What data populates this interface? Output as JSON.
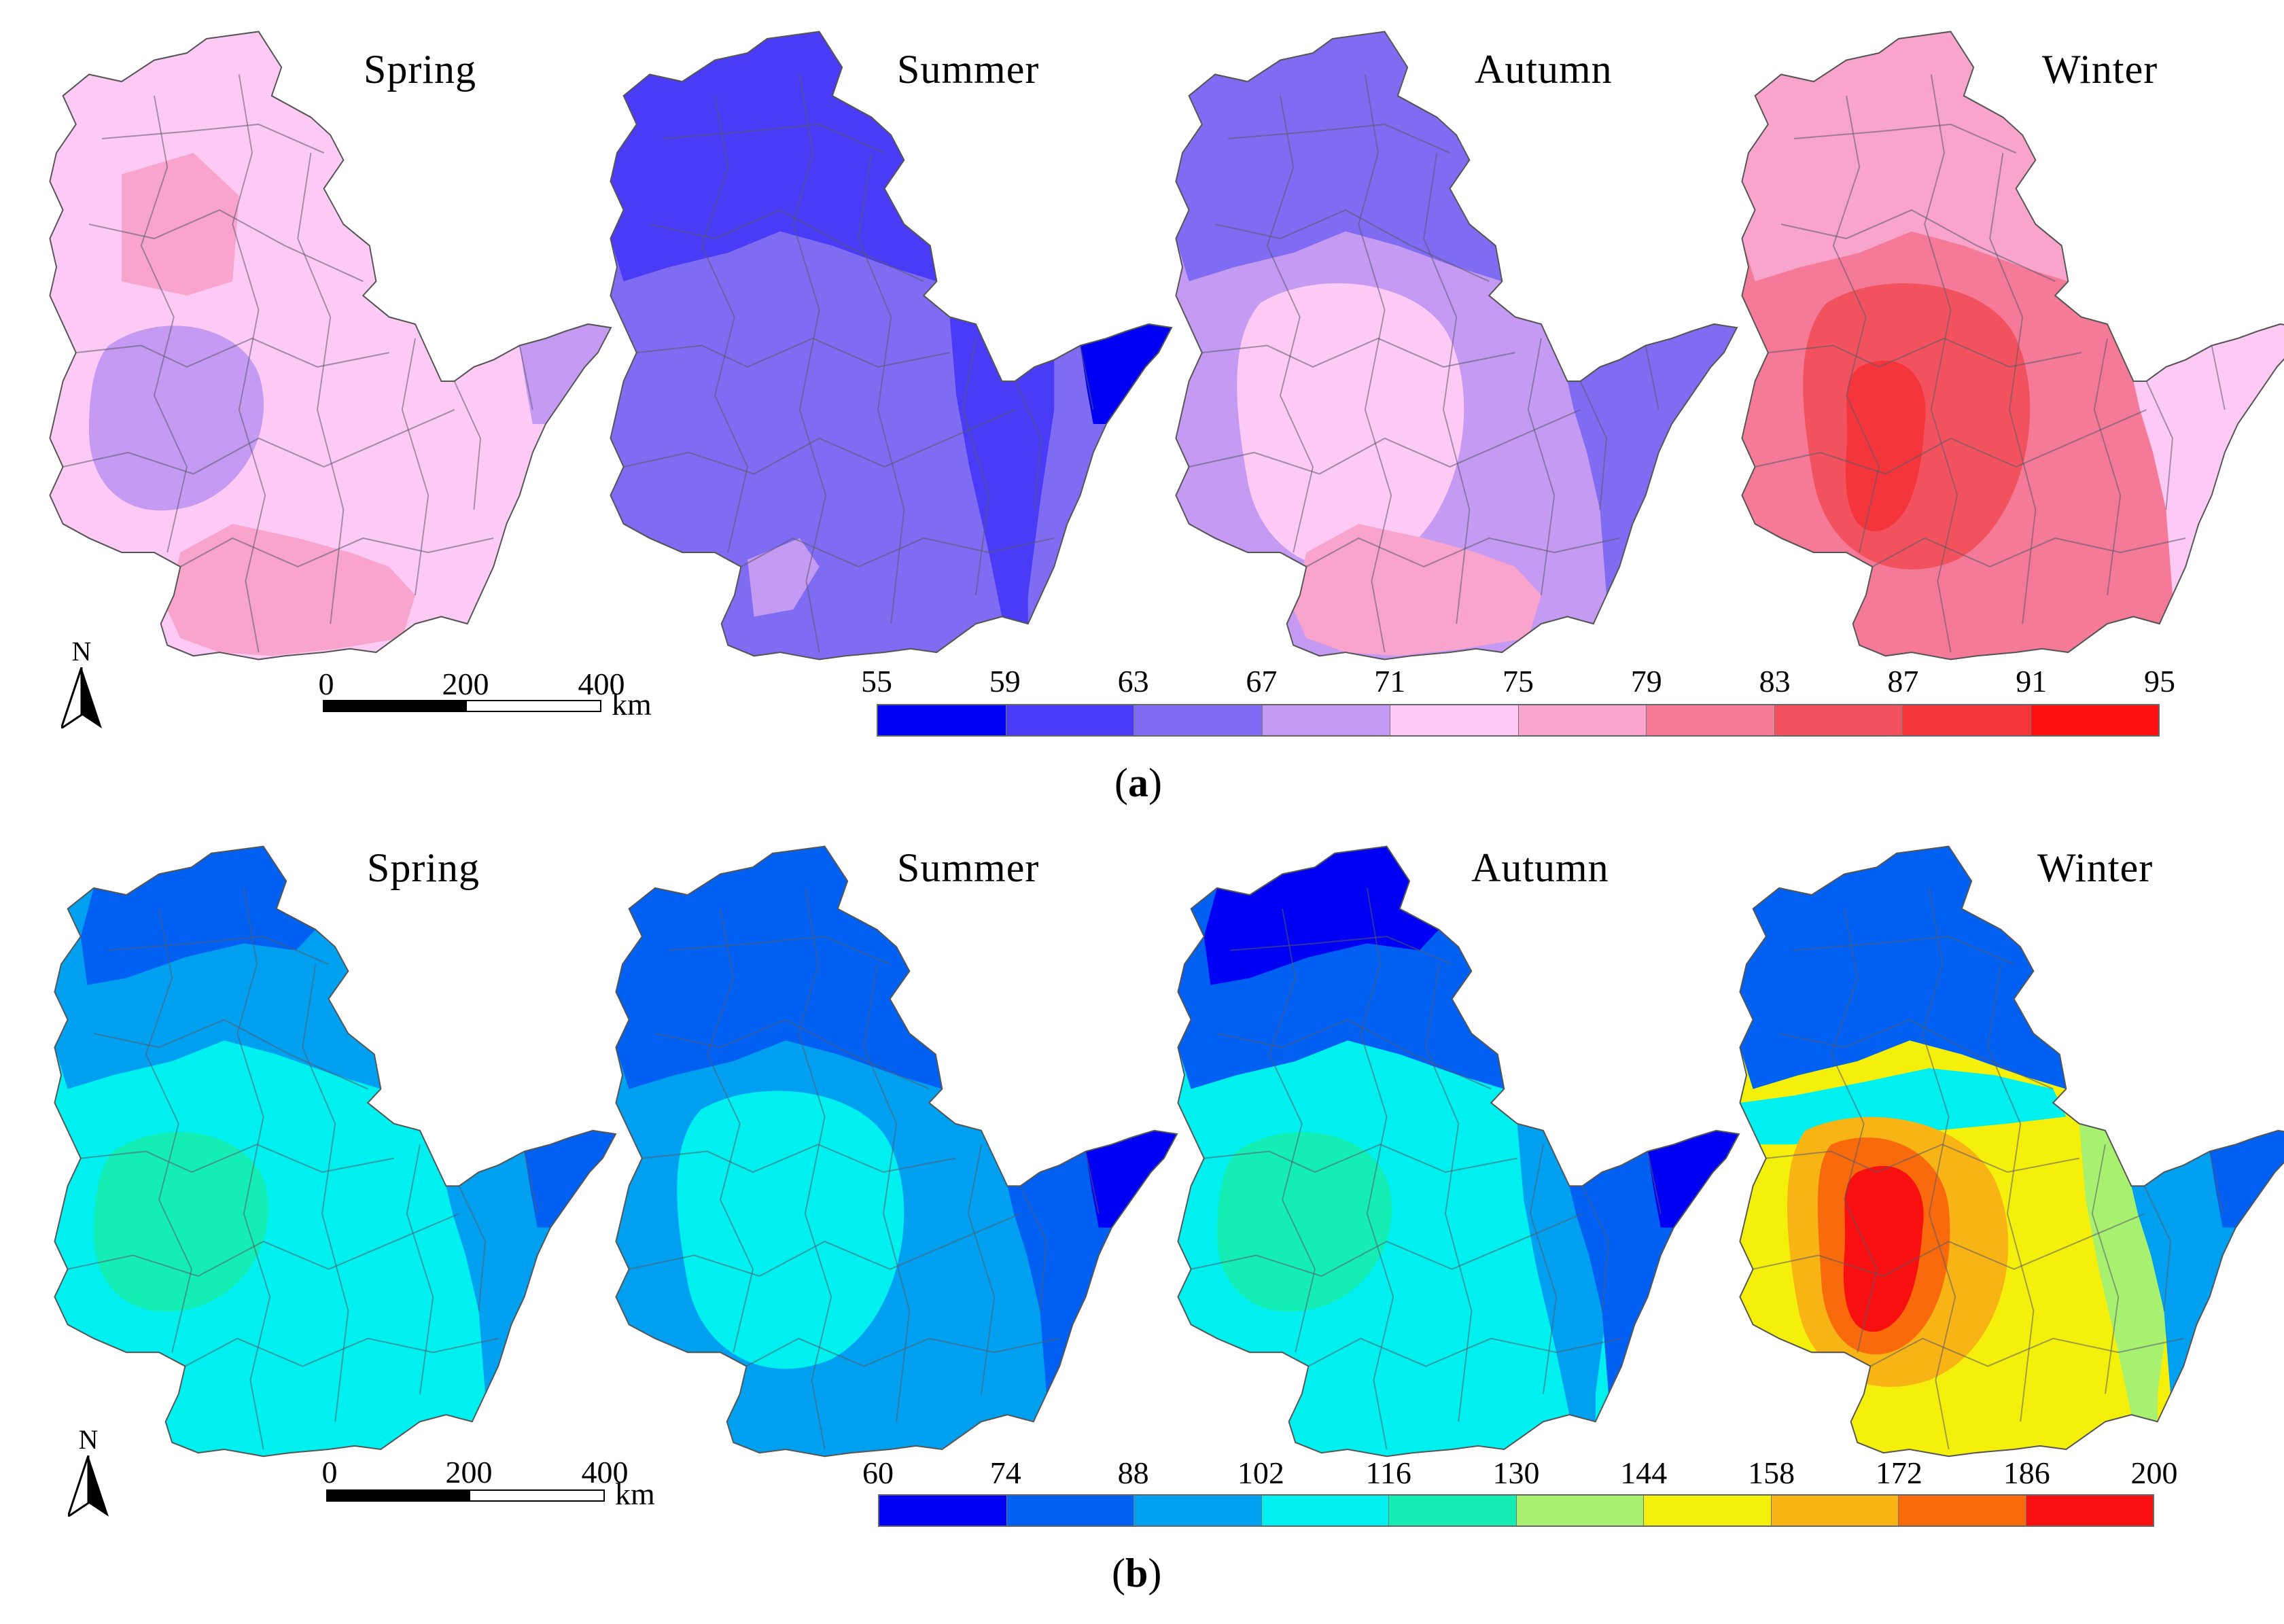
{
  "panels": [
    {
      "id": "a",
      "caption_open": "(",
      "caption_letter": "a",
      "caption_close": ")",
      "seasons": [
        "Spring",
        "Summer",
        "Autumn",
        "Winter"
      ],
      "legend": {
        "ticks": [
          "55",
          "59",
          "63",
          "67",
          "71",
          "75",
          "79",
          "83",
          "87",
          "91",
          "95"
        ],
        "colors": [
          "#0000f2",
          "#4a3cf6",
          "#7f6cf2",
          "#c59af2",
          "#fccaf4",
          "#f8a4cc",
          "#f47a98",
          "#f2525e",
          "#f4363c",
          "#fe0f10"
        ]
      },
      "maps": [
        {
          "season": "Spring",
          "base": "#fccaf4",
          "regions": [
            {
              "pattern": "top",
              "color": "#f8a4cc"
            },
            {
              "pattern": "south",
              "color": "#f8a4cc"
            },
            {
              "pattern": "blob-west",
              "color": "#c59af2"
            },
            {
              "pattern": "peninsula-tip",
              "color": "#c59af2"
            }
          ]
        },
        {
          "season": "Summer",
          "base": "#7f6cf2",
          "regions": [
            {
              "pattern": "north",
              "color": "#4a3cf6"
            },
            {
              "pattern": "east",
              "color": "#4a3cf6"
            },
            {
              "pattern": "peninsula-tip",
              "color": "#0000f2"
            },
            {
              "pattern": "south-spot",
              "color": "#c59af2"
            }
          ]
        },
        {
          "season": "Autumn",
          "base": "#c59af2",
          "regions": [
            {
              "pattern": "north",
              "color": "#7f6cf2"
            },
            {
              "pattern": "centre",
              "color": "#fccaf4"
            },
            {
              "pattern": "south",
              "color": "#f8a4cc"
            },
            {
              "pattern": "peninsula",
              "color": "#7f6cf2"
            }
          ]
        },
        {
          "season": "Winter",
          "base": "#f47a98",
          "regions": [
            {
              "pattern": "north",
              "color": "#f8a4cc"
            },
            {
              "pattern": "centre",
              "color": "#f2525e"
            },
            {
              "pattern": "core",
              "color": "#f4363c"
            },
            {
              "pattern": "peninsula",
              "color": "#fccaf4"
            }
          ]
        }
      ]
    },
    {
      "id": "b",
      "caption_open": "(",
      "caption_letter": "b",
      "caption_close": ")",
      "seasons": [
        "Spring",
        "Summer",
        "Autumn",
        "Winter"
      ],
      "legend": {
        "ticks": [
          "60",
          "74",
          "88",
          "102",
          "116",
          "130",
          "144",
          "158",
          "172",
          "186",
          "200"
        ],
        "colors": [
          "#0000f2",
          "#0060f2",
          "#00a0f0",
          "#00f0f0",
          "#14eeb4",
          "#a8f070",
          "#f4f00c",
          "#f8b414",
          "#f86a0c",
          "#f81010"
        ]
      },
      "maps": [
        {
          "season": "Spring",
          "base": "#00f0f0",
          "regions": [
            {
              "pattern": "north",
              "color": "#00a0f0"
            },
            {
              "pattern": "top-edge",
              "color": "#0060f2"
            },
            {
              "pattern": "blob-west",
              "color": "#14eeb4"
            },
            {
              "pattern": "peninsula",
              "color": "#00a0f0"
            },
            {
              "pattern": "peninsula-tip",
              "color": "#0060f2"
            }
          ]
        },
        {
          "season": "Summer",
          "base": "#00a0f0",
          "regions": [
            {
              "pattern": "north",
              "color": "#0060f2"
            },
            {
              "pattern": "centre",
              "color": "#00f0f0"
            },
            {
              "pattern": "peninsula",
              "color": "#0060f2"
            },
            {
              "pattern": "peninsula-tip",
              "color": "#0000f2"
            }
          ]
        },
        {
          "season": "Autumn",
          "base": "#00f0f0",
          "regions": [
            {
              "pattern": "north",
              "color": "#0060f2"
            },
            {
              "pattern": "top-edge",
              "color": "#0000f2"
            },
            {
              "pattern": "blob-west",
              "color": "#14eeb4"
            },
            {
              "pattern": "east",
              "color": "#00a0f0"
            },
            {
              "pattern": "peninsula",
              "color": "#0060f2"
            },
            {
              "pattern": "peninsula-tip",
              "color": "#0000f2"
            }
          ]
        },
        {
          "season": "Winter",
          "base": "#f4f00c",
          "regions": [
            {
              "pattern": "north",
              "color": "#0060f2"
            },
            {
              "pattern": "band",
              "color": "#00f0f0"
            },
            {
              "pattern": "east",
              "color": "#a8f070"
            },
            {
              "pattern": "peninsula",
              "color": "#00a0f0"
            },
            {
              "pattern": "peninsula-tip",
              "color": "#0060f2"
            },
            {
              "pattern": "ring1",
              "color": "#f8b414"
            },
            {
              "pattern": "ring2",
              "color": "#f86a0c"
            },
            {
              "pattern": "core",
              "color": "#f81010"
            }
          ]
        }
      ]
    }
  ],
  "scale_bar": {
    "ticks": [
      "0",
      "200",
      "400"
    ],
    "unit": "km"
  },
  "north_label": "N"
}
